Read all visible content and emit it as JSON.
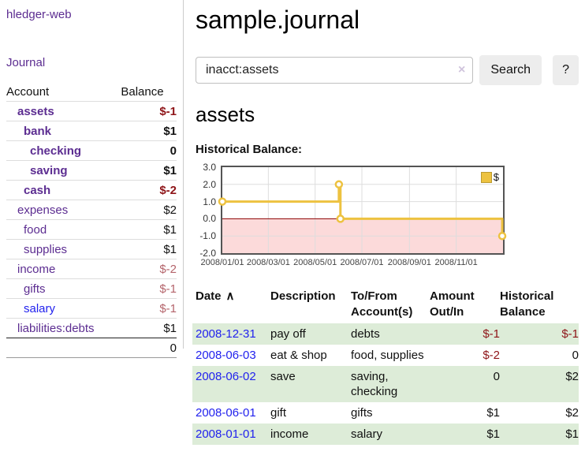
{
  "sidebar": {
    "app_title": "hledger-web",
    "nav": {
      "journal_label": "Journal"
    },
    "accounts_table": {
      "headers": {
        "account": "Account",
        "balance": "Balance"
      },
      "rows": [
        {
          "name": "assets",
          "depth": 1,
          "balance": "$-1",
          "bold": true
        },
        {
          "name": "bank",
          "depth": 2,
          "balance": "$1",
          "bold": true
        },
        {
          "name": "checking",
          "depth": 3,
          "balance": "0",
          "bold": true
        },
        {
          "name": "saving",
          "depth": 3,
          "balance": "$1",
          "bold": true
        },
        {
          "name": "cash",
          "depth": 2,
          "balance": "$-2",
          "bold": true
        },
        {
          "name": "expenses",
          "depth": 1,
          "balance": "$2",
          "bold": false
        },
        {
          "name": "food",
          "depth": 2,
          "balance": "$1",
          "bold": false
        },
        {
          "name": "supplies",
          "depth": 2,
          "balance": "$1",
          "bold": false
        },
        {
          "name": "income",
          "depth": 1,
          "balance": "$-2",
          "bold": false
        },
        {
          "name": "gifts",
          "depth": 2,
          "balance": "$-1",
          "bold": false
        },
        {
          "name": "salary",
          "depth": 2,
          "balance": "$-1",
          "bold": false,
          "blue_link": true
        },
        {
          "name": "liabilities:debts",
          "depth": 1,
          "balance": "$1",
          "bold": false
        }
      ],
      "total": "0"
    }
  },
  "main": {
    "title": "sample.journal",
    "search": {
      "value": "inacct:assets",
      "clear_icon": "×",
      "button_label": "Search",
      "help_label": "?"
    },
    "account_heading": "assets",
    "chart_heading": "Historical Balance:"
  },
  "chart_data": {
    "type": "line",
    "step": true,
    "title": "Historical Balance:",
    "legend": "$",
    "legend_position": "top-right",
    "grid": true,
    "xlim": [
      "2008/01/01",
      "2009/01/01"
    ],
    "ylim": [
      -2,
      3
    ],
    "yticks": [
      -2,
      -1,
      0,
      1,
      2,
      3
    ],
    "xticks": [
      "2008/01/01",
      "2008/03/01",
      "2008/05/01",
      "2008/07/01",
      "2008/09/01",
      "2008/11/01"
    ],
    "series": [
      {
        "name": "$",
        "points": [
          {
            "x": "2008/01/01",
            "y": 1
          },
          {
            "x": "2008/06/01",
            "y": 2
          },
          {
            "x": "2008/06/03",
            "y": 0
          },
          {
            "x": "2008/12/31",
            "y": -1
          }
        ]
      }
    ],
    "colors": {
      "series": "#edc240",
      "negative_fill": "#fcdada",
      "zero_line": "#8b0000",
      "grid": "#dddddd",
      "border": "#545454"
    }
  },
  "register_table": {
    "headers": {
      "date": "Date",
      "sort_icon": "∧",
      "description": "Description",
      "accounts": "To/From Account(s)",
      "amount": "Amount Out/In",
      "balance": "Historical Balance"
    },
    "rows": [
      {
        "date": "2008-12-31",
        "description": "pay off",
        "accounts": "debts",
        "amount": "$-1",
        "balance": "$-1"
      },
      {
        "date": "2008-06-03",
        "description": "eat & shop",
        "accounts": "food, supplies",
        "amount": "$-2",
        "balance": "0"
      },
      {
        "date": "2008-06-02",
        "description": "save",
        "accounts": "saving, checking",
        "amount": "0",
        "balance": "$2"
      },
      {
        "date": "2008-06-01",
        "description": "gift",
        "accounts": "gifts",
        "amount": "$1",
        "balance": "$2"
      },
      {
        "date": "2008-01-01",
        "description": "income",
        "accounts": "salary",
        "amount": "$1",
        "balance": "$1"
      }
    ]
  },
  "colors": {
    "link_purple": "#5c2d91",
    "link_blue": "#2222ee",
    "negative_strong": "#8e1418",
    "negative_soft": "#b4646b",
    "row_green": "#ddecd8"
  }
}
